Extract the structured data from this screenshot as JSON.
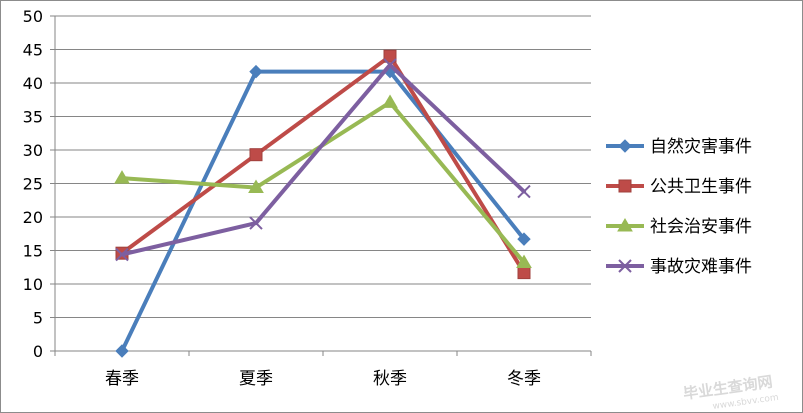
{
  "chart_data": {
    "type": "line",
    "categories": [
      "春季",
      "夏季",
      "秋季",
      "冬季"
    ],
    "series": [
      {
        "name": "自然灾害事件",
        "values": [
          0,
          41.7,
          41.7,
          16.7
        ],
        "color": "#4a7ebb",
        "marker": "diamond"
      },
      {
        "name": "公共卫生事件",
        "values": [
          14.6,
          29.3,
          44.0,
          11.7
        ],
        "color": "#be4b48",
        "marker": "square"
      },
      {
        "name": "社会治安事件",
        "values": [
          25.8,
          24.4,
          37.1,
          13.2
        ],
        "color": "#98b954",
        "marker": "triangle"
      },
      {
        "name": "事故灾难事件",
        "values": [
          14.4,
          19.1,
          42.7,
          23.8
        ],
        "color": "#7d5fa0",
        "marker": "x"
      }
    ],
    "ylim": [
      0,
      50
    ],
    "yticks": [
      0,
      5,
      10,
      15,
      20,
      25,
      30,
      35,
      40,
      45,
      50
    ],
    "grid": true,
    "legend_position": "right"
  },
  "watermark": {
    "main": "毕业生查询网",
    "sub": "www.sbvv.com"
  }
}
